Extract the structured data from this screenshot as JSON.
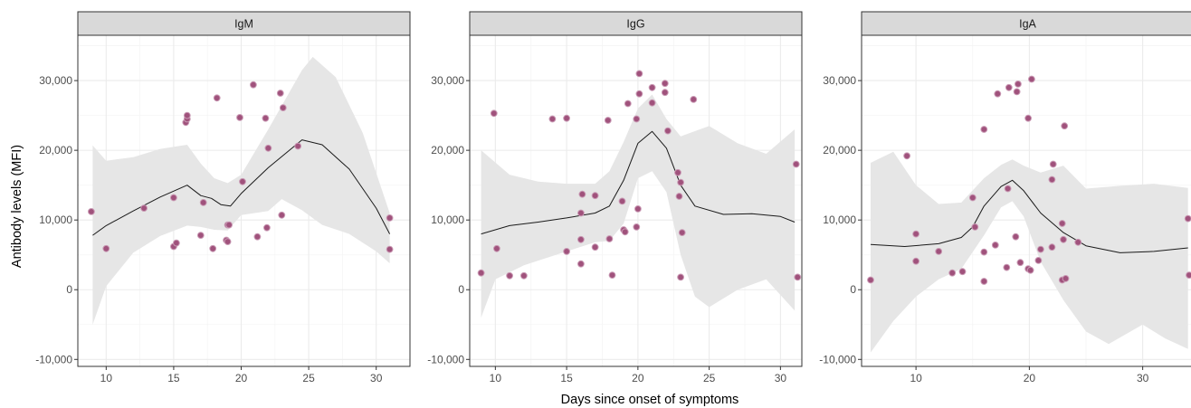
{
  "colors": {
    "background": "#ffffff",
    "grid_major": "#ebebeb",
    "grid_minor": "#f5f5f5",
    "strip_fill": "#d9d9d9",
    "ribbon": "#e6e6e6",
    "smooth_line": "#1a1a1a",
    "point_fill": "#a0527c",
    "point_edge": "#c99ab4"
  },
  "chart_data": {
    "type": "scatter",
    "xlabel": "Days since onset of symptoms",
    "ylabel": "Antibody levels (MFI)",
    "ylim": [
      -11000,
      36500
    ],
    "y_ticks": [
      -10000,
      0,
      10000,
      20000,
      30000
    ],
    "y_tick_labels": [
      "-10,000",
      "0",
      "10,000",
      "20,000",
      "30,000"
    ],
    "grid": true,
    "panels": [
      {
        "title": "IgM",
        "xlim": [
          7.9,
          32.5
        ],
        "x_ticks": [
          10,
          15,
          20,
          25,
          30
        ],
        "x_tick_labels": [
          "10",
          "15",
          "20",
          "25",
          "30"
        ],
        "points": [
          [
            8.9,
            11200
          ],
          [
            10,
            5900
          ],
          [
            12.8,
            11700
          ],
          [
            15,
            13200
          ],
          [
            15,
            6200
          ],
          [
            15.2,
            6700
          ],
          [
            15.9,
            24000
          ],
          [
            16,
            24500
          ],
          [
            16,
            25000
          ],
          [
            17,
            7800
          ],
          [
            17.2,
            12500
          ],
          [
            17.9,
            5900
          ],
          [
            18.2,
            27500
          ],
          [
            18.9,
            7100
          ],
          [
            19,
            9300
          ],
          [
            19,
            6900
          ],
          [
            19.1,
            9300
          ],
          [
            19.9,
            24700
          ],
          [
            20.1,
            15500
          ],
          [
            20.9,
            29400
          ],
          [
            21.2,
            7600
          ],
          [
            21.8,
            24600
          ],
          [
            21.9,
            8900
          ],
          [
            22,
            20300
          ],
          [
            22.9,
            28200
          ],
          [
            23,
            10700
          ],
          [
            23.1,
            26100
          ],
          [
            24.2,
            20600
          ],
          [
            31,
            10300
          ],
          [
            31,
            5800
          ]
        ],
        "smooth": [
          [
            9,
            7800
          ],
          [
            10,
            9200
          ],
          [
            12,
            11300
          ],
          [
            14,
            13300
          ],
          [
            16,
            15000
          ],
          [
            17,
            13500
          ],
          [
            17.8,
            13100
          ],
          [
            18.5,
            12200
          ],
          [
            19.2,
            12000
          ],
          [
            20,
            13800
          ],
          [
            22,
            17500
          ],
          [
            24.5,
            21500
          ],
          [
            26,
            20800
          ],
          [
            28,
            17300
          ],
          [
            30,
            11700
          ],
          [
            31,
            8000
          ]
        ],
        "ribbon_upper": [
          [
            9,
            20700
          ],
          [
            10,
            18500
          ],
          [
            12,
            19000
          ],
          [
            14,
            20200
          ],
          [
            16,
            20800
          ],
          [
            17,
            18100
          ],
          [
            18,
            16000
          ],
          [
            19,
            15300
          ],
          [
            20,
            16500
          ],
          [
            22,
            23000
          ],
          [
            24.5,
            31500
          ],
          [
            25.3,
            33400
          ],
          [
            27,
            30500
          ],
          [
            29,
            22500
          ],
          [
            31,
            11000
          ]
        ],
        "ribbon_lower": [
          [
            9,
            -5000
          ],
          [
            10,
            500
          ],
          [
            12,
            5300
          ],
          [
            14,
            7700
          ],
          [
            16,
            9200
          ],
          [
            17,
            9000
          ],
          [
            18,
            8600
          ],
          [
            19,
            8500
          ],
          [
            20,
            10700
          ],
          [
            22,
            11300
          ],
          [
            23,
            13000
          ],
          [
            24.5,
            11400
          ],
          [
            26,
            9300
          ],
          [
            28,
            8000
          ],
          [
            30,
            5500
          ],
          [
            31,
            3800
          ]
        ]
      },
      {
        "title": "IgG",
        "xlim": [
          8.2,
          31.5
        ],
        "x_ticks": [
          10,
          15,
          20,
          25,
          30
        ],
        "x_tick_labels": [
          "10",
          "15",
          "20",
          "25",
          "30"
        ],
        "points": [
          [
            9,
            2400
          ],
          [
            9.9,
            25300
          ],
          [
            10.1,
            5900
          ],
          [
            11,
            2000
          ],
          [
            12,
            2000
          ],
          [
            14,
            24500
          ],
          [
            15,
            24600
          ],
          [
            15,
            5500
          ],
          [
            16,
            11000
          ],
          [
            16,
            7200
          ],
          [
            16,
            3700
          ],
          [
            16.1,
            13700
          ],
          [
            17,
            13500
          ],
          [
            17,
            6100
          ],
          [
            17.9,
            24300
          ],
          [
            18,
            7300
          ],
          [
            18.2,
            2100
          ],
          [
            18.9,
            12700
          ],
          [
            19,
            8600
          ],
          [
            19.1,
            8300
          ],
          [
            19.3,
            26700
          ],
          [
            19.9,
            9000
          ],
          [
            19.9,
            24500
          ],
          [
            20,
            11600
          ],
          [
            20.1,
            28100
          ],
          [
            20.1,
            31000
          ],
          [
            21,
            29000
          ],
          [
            21,
            26800
          ],
          [
            21.9,
            29600
          ],
          [
            21.9,
            28300
          ],
          [
            22.1,
            22800
          ],
          [
            22.8,
            16800
          ],
          [
            22.9,
            13400
          ],
          [
            23,
            15400
          ],
          [
            23.1,
            8200
          ],
          [
            23,
            1800
          ],
          [
            23.9,
            27300
          ],
          [
            31.1,
            18000
          ],
          [
            31.2,
            1800
          ]
        ],
        "smooth": [
          [
            9,
            8000
          ],
          [
            11,
            9200
          ],
          [
            13,
            9700
          ],
          [
            15,
            10300
          ],
          [
            17,
            11000
          ],
          [
            18,
            12000
          ],
          [
            19,
            15700
          ],
          [
            20,
            21000
          ],
          [
            21,
            22700
          ],
          [
            22,
            20300
          ],
          [
            23,
            15000
          ],
          [
            24,
            12000
          ],
          [
            26,
            10800
          ],
          [
            28,
            10900
          ],
          [
            30,
            10500
          ],
          [
            31,
            9700
          ]
        ],
        "ribbon_upper": [
          [
            9,
            20000
          ],
          [
            11,
            16500
          ],
          [
            13,
            15500
          ],
          [
            15,
            15200
          ],
          [
            17,
            15200
          ],
          [
            18,
            17000
          ],
          [
            19,
            21200
          ],
          [
            20,
            26000
          ],
          [
            21,
            28000
          ],
          [
            22,
            24500
          ],
          [
            23,
            22000
          ],
          [
            25,
            23500
          ],
          [
            27,
            21000
          ],
          [
            29,
            19500
          ],
          [
            31,
            23000
          ]
        ],
        "ribbon_lower": [
          [
            9,
            -4000
          ],
          [
            10,
            1500
          ],
          [
            12,
            3500
          ],
          [
            15,
            5500
          ],
          [
            17,
            6800
          ],
          [
            18,
            7000
          ],
          [
            19,
            9500
          ],
          [
            20,
            16000
          ],
          [
            21,
            17000
          ],
          [
            22,
            14000
          ],
          [
            23,
            5000
          ],
          [
            24,
            -1000
          ],
          [
            25,
            -2500
          ],
          [
            27,
            0
          ],
          [
            29,
            1500
          ],
          [
            31,
            -3000
          ]
        ]
      },
      {
        "title": "IgA",
        "xlim": [
          5.2,
          34.5
        ],
        "x_ticks": [
          10,
          20,
          30
        ],
        "x_tick_labels": [
          "10",
          "20",
          "30"
        ],
        "points": [
          [
            6,
            1400
          ],
          [
            9.2,
            19200
          ],
          [
            10,
            8000
          ],
          [
            10,
            4100
          ],
          [
            12,
            5500
          ],
          [
            13.2,
            2400
          ],
          [
            14.1,
            2600
          ],
          [
            15,
            13200
          ],
          [
            15.2,
            9000
          ],
          [
            16,
            23000
          ],
          [
            16,
            5400
          ],
          [
            16,
            1200
          ],
          [
            17,
            6400
          ],
          [
            17.2,
            28100
          ],
          [
            18.1,
            14500
          ],
          [
            18,
            3200
          ],
          [
            18.2,
            29000
          ],
          [
            18.8,
            7600
          ],
          [
            18.9,
            28400
          ],
          [
            19,
            29500
          ],
          [
            19.2,
            3900
          ],
          [
            19.9,
            24600
          ],
          [
            19.9,
            3000
          ],
          [
            20.1,
            2800
          ],
          [
            20.2,
            30200
          ],
          [
            20.8,
            4200
          ],
          [
            21,
            5800
          ],
          [
            22,
            6100
          ],
          [
            22.1,
            18000
          ],
          [
            22,
            15800
          ],
          [
            22.9,
            9500
          ],
          [
            22.9,
            1400
          ],
          [
            23,
            7200
          ],
          [
            23.1,
            23500
          ],
          [
            23.2,
            1600
          ],
          [
            24.3,
            6800
          ],
          [
            34,
            10200
          ],
          [
            34.1,
            2100
          ]
        ],
        "smooth": [
          [
            6,
            6500
          ],
          [
            9,
            6200
          ],
          [
            12,
            6600
          ],
          [
            14,
            7500
          ],
          [
            15,
            9000
          ],
          [
            16,
            12000
          ],
          [
            17.5,
            14800
          ],
          [
            18.5,
            15700
          ],
          [
            19.5,
            14200
          ],
          [
            21,
            11000
          ],
          [
            23,
            8200
          ],
          [
            25,
            6300
          ],
          [
            28,
            5300
          ],
          [
            31,
            5500
          ],
          [
            34,
            6000
          ]
        ],
        "ribbon_upper": [
          [
            6,
            18200
          ],
          [
            8,
            19800
          ],
          [
            10,
            15000
          ],
          [
            12,
            12300
          ],
          [
            14,
            12500
          ],
          [
            16,
            16000
          ],
          [
            17.5,
            17900
          ],
          [
            18.5,
            18700
          ],
          [
            19.5,
            17800
          ],
          [
            21,
            16800
          ],
          [
            23,
            17800
          ],
          [
            25,
            14500
          ],
          [
            28,
            14900
          ],
          [
            31,
            15200
          ],
          [
            34,
            14600
          ]
        ],
        "ribbon_lower": [
          [
            6,
            -9000
          ],
          [
            8,
            -4500
          ],
          [
            10,
            -1000
          ],
          [
            12,
            1500
          ],
          [
            14,
            3000
          ],
          [
            16,
            7800
          ],
          [
            17.5,
            11800
          ],
          [
            18.5,
            12700
          ],
          [
            19.5,
            10500
          ],
          [
            21,
            4000
          ],
          [
            23,
            -1500
          ],
          [
            25,
            -6000
          ],
          [
            27,
            -7800
          ],
          [
            30,
            -5000
          ],
          [
            32,
            -7000
          ],
          [
            34,
            -8500
          ]
        ]
      }
    ]
  }
}
